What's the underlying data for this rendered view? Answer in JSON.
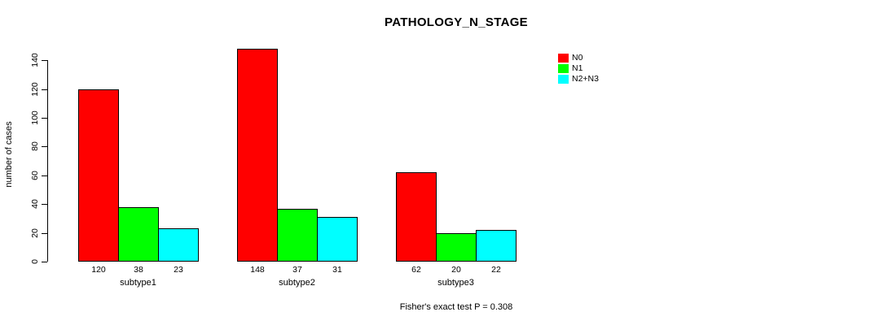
{
  "title": "PATHOLOGY_N_STAGE",
  "footer_note": "Fisher's exact test P = 0.308",
  "chart_data": {
    "type": "bar",
    "title": "PATHOLOGY_N_STAGE",
    "xlabel": "",
    "ylabel": "number of cases",
    "categories": [
      "subtype1",
      "subtype2",
      "subtype3"
    ],
    "series": [
      {
        "name": "N0",
        "color": "#ff0000",
        "values": [
          120,
          148,
          62
        ]
      },
      {
        "name": "N1",
        "color": "#00ff00",
        "values": [
          38,
          37,
          20
        ]
      },
      {
        "name": "N2+N3",
        "color": "#00ffff",
        "values": [
          23,
          31,
          22
        ]
      }
    ],
    "bar_value_labels": [
      [
        "120",
        "38",
        "23"
      ],
      [
        "148",
        "37",
        "31"
      ],
      [
        "62",
        "20",
        "22"
      ]
    ],
    "yticks": [
      0,
      20,
      40,
      60,
      80,
      100,
      120,
      140
    ],
    "ylim": [
      0,
      148
    ],
    "grid": false,
    "legend_position": "top-right",
    "legend_entries": [
      "N0",
      "N1",
      "N2+N3"
    ],
    "annotation": "Fisher's exact test P = 0.308"
  }
}
